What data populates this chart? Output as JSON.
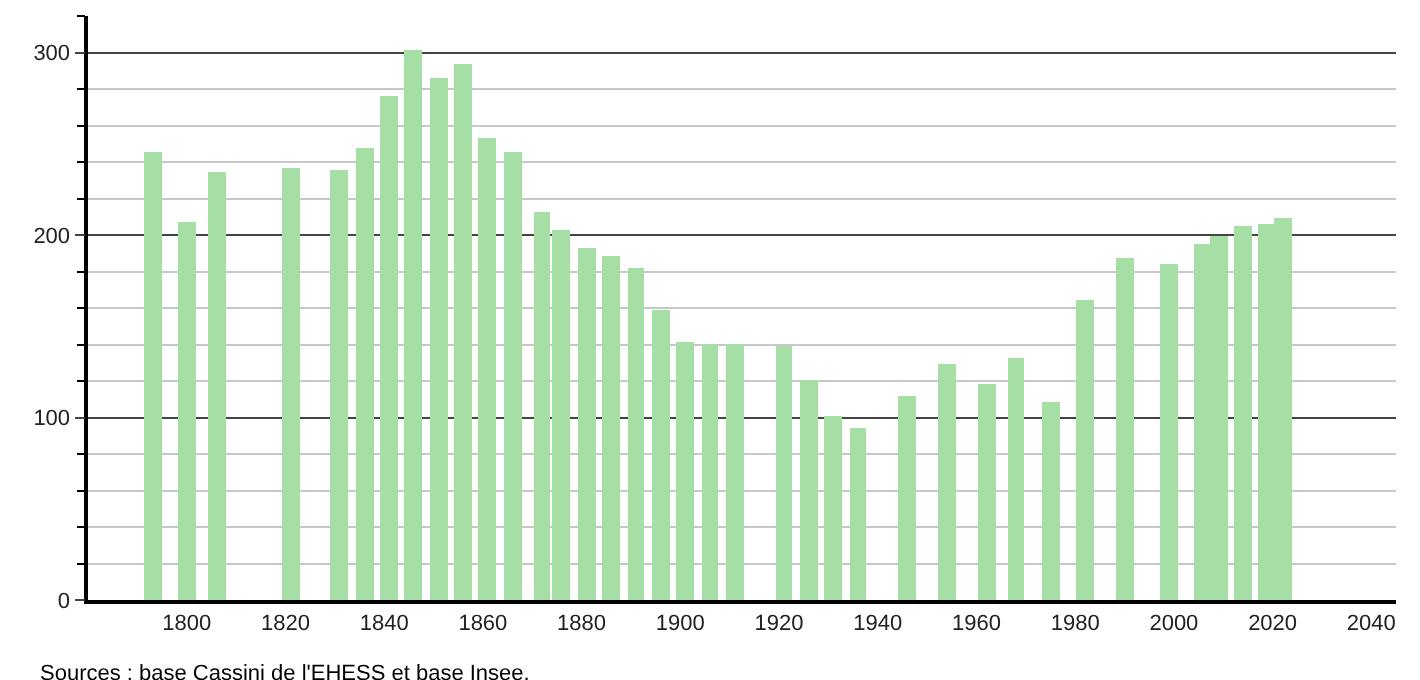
{
  "chart_data": {
    "type": "bar",
    "x": [
      1793,
      1800,
      1806,
      1821,
      1831,
      1836,
      1841,
      1846,
      1851,
      1856,
      1861,
      1866,
      1872,
      1876,
      1881,
      1886,
      1891,
      1896,
      1901,
      1906,
      1911,
      1921,
      1926,
      1931,
      1936,
      1946,
      1954,
      1962,
      1968,
      1975,
      1982,
      1990,
      1999,
      2006,
      2009,
      2014,
      2019,
      2022
    ],
    "values": [
      246,
      207,
      234,
      237,
      236,
      248,
      276,
      301,
      286,
      294,
      253,
      245,
      213,
      203,
      193,
      189,
      182,
      159,
      141,
      140,
      140,
      139,
      121,
      101,
      94,
      112,
      129,
      118,
      133,
      109,
      164,
      187,
      184,
      195,
      200,
      205,
      206,
      209
    ],
    "color": "#a6dfa6",
    "xlim": [
      1780,
      2045
    ],
    "xticks": [
      1800,
      1820,
      1840,
      1860,
      1880,
      1900,
      1920,
      1940,
      1960,
      1980,
      2000,
      2020,
      2040
    ],
    "ylim": [
      0,
      320
    ],
    "yticks": [
      0,
      {
        "value": 20,
        "label": null
      },
      {
        "value": 40,
        "label": null
      },
      {
        "value": 60,
        "label": null
      },
      {
        "value": 80,
        "label": null
      },
      100,
      {
        "value": 120,
        "label": null
      },
      {
        "value": 140,
        "label": null
      },
      {
        "value": 160,
        "label": null
      },
      {
        "value": 180,
        "label": null
      },
      200,
      {
        "value": 220,
        "label": null
      },
      {
        "value": 240,
        "label": null
      },
      {
        "value": 260,
        "label": null
      },
      {
        "value": 280,
        "label": null
      },
      300,
      {
        "value": 320,
        "label": null
      }
    ],
    "grid": "y",
    "annotations": [
      "Sources : base Cassini de l'EHESS et base Insee."
    ]
  }
}
